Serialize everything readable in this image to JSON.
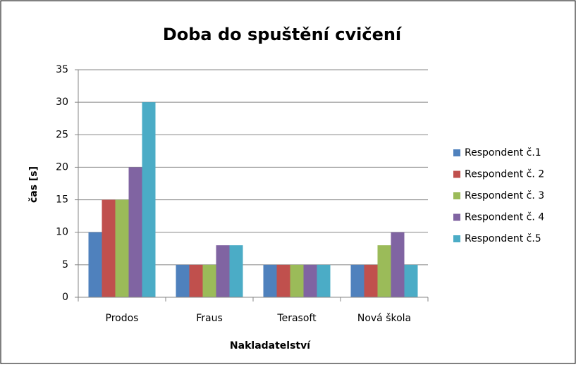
{
  "chart_data": {
    "type": "bar",
    "title": "Doba do spuštění cvičení",
    "x_label": "Nakladatelství",
    "y_label": "čas [s]",
    "categories": [
      "Prodos",
      "Fraus",
      "Terasoft",
      "Nová škola"
    ],
    "series": [
      {
        "name": "Respondent č.1",
        "color": "#4f81bd",
        "values": [
          10,
          5,
          5,
          5
        ]
      },
      {
        "name": "Respondent č. 2",
        "color": "#c0504d",
        "values": [
          15,
          5,
          5,
          5
        ]
      },
      {
        "name": "Respondent č. 3",
        "color": "#9bbb59",
        "values": [
          15,
          5,
          5,
          8
        ]
      },
      {
        "name": "Respondent č. 4",
        "color": "#8064a2",
        "values": [
          20,
          8,
          5,
          10
        ]
      },
      {
        "name": "Respondent č.5",
        "color": "#4bacc6",
        "values": [
          30,
          8,
          5,
          5
        ]
      }
    ],
    "ylim": [
      0,
      35
    ],
    "yticks": [
      0,
      5,
      10,
      15,
      20,
      25,
      30,
      35
    ],
    "grid": true,
    "legend": "right"
  }
}
